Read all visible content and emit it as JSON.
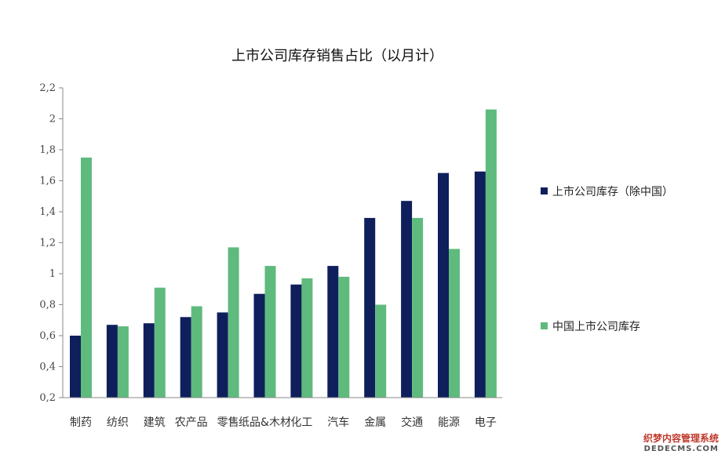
{
  "chart_data": {
    "type": "bar",
    "title": "上市公司库存销售占比（以月计）",
    "xlabel": "",
    "ylabel": "",
    "ylim": [
      0.2,
      2.2
    ],
    "yticks": [
      "0,2",
      "0,4",
      "0,6",
      "0,8",
      "1",
      "1,2",
      "1,4",
      "1,6",
      "1,8",
      "2",
      "2,2"
    ],
    "categories": [
      "制药",
      "纺织",
      "建筑",
      "农产品",
      "零售",
      "纸品&木材",
      "化工",
      "汽车",
      "金属",
      "交通",
      "能源",
      "电子"
    ],
    "series": [
      {
        "name": "上市公司库存（除中国）",
        "color": "#0f1f5c",
        "values": [
          0.6,
          0.67,
          0.68,
          0.72,
          0.75,
          0.87,
          0.93,
          1.05,
          1.36,
          1.47,
          1.65,
          1.66
        ]
      },
      {
        "name": "中国上市公司库存",
        "color": "#5fba7d",
        "values": [
          1.75,
          0.66,
          0.91,
          0.79,
          1.17,
          1.05,
          0.97,
          0.98,
          0.8,
          1.36,
          1.16,
          2.06
        ]
      }
    ],
    "legend": "right"
  },
  "watermark": {
    "line1": "织梦内容管理系统",
    "line2": "DEDECMS.COM"
  }
}
